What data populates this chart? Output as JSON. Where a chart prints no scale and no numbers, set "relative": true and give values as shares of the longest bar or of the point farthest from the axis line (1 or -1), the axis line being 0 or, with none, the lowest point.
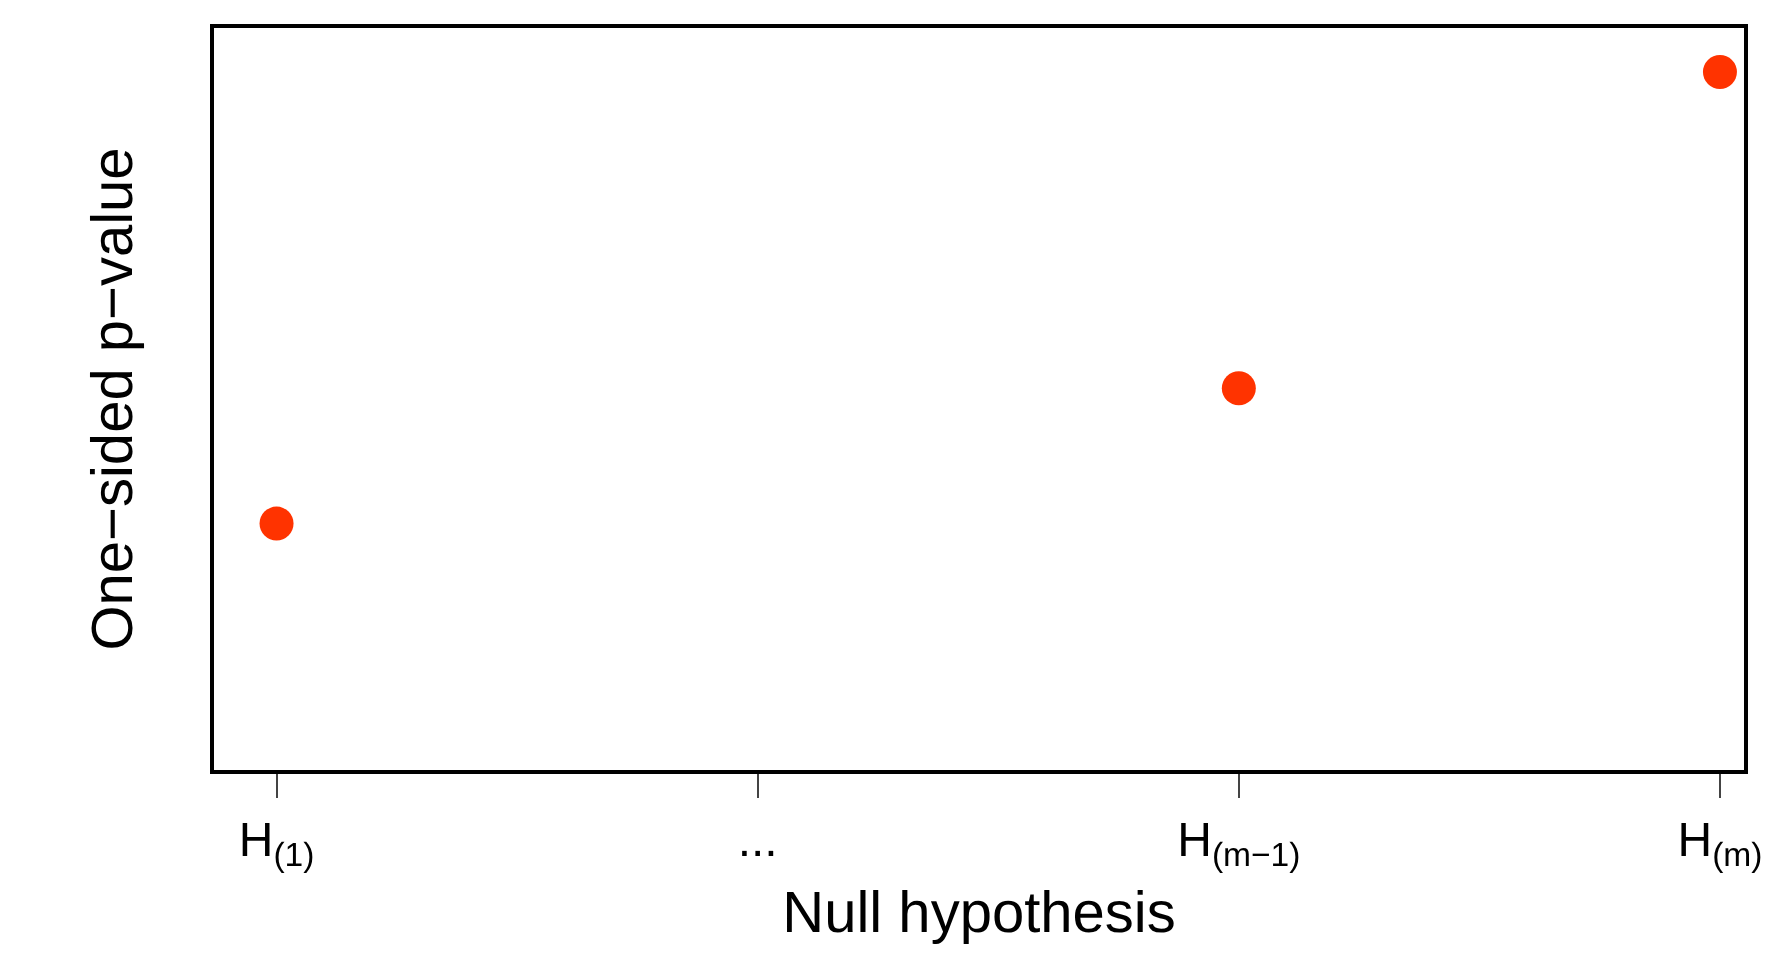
{
  "chart_data": {
    "type": "scatter",
    "relative": true,
    "xlabel": "Null hypothesis",
    "ylabel": "One−sided p−value",
    "categories": [
      "H$_{(1)}$",
      "...",
      "H$_{(m−1)}$",
      "H$_{(m)}$"
    ],
    "series": [
      {
        "color": "#ff3300",
        "values": [
          0.353,
          null,
          0.547,
          1
        ]
      }
    ],
    "marker": "circle"
  }
}
